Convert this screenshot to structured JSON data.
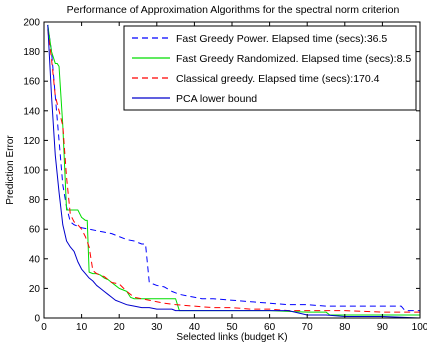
{
  "chart_data": {
    "type": "line",
    "title": "Performance of Approximation Algorithms for the spectral norm criterion",
    "xlabel": "Selected links (budget K)",
    "ylabel": "Prediction Error",
    "xlim": [
      0,
      100
    ],
    "ylim": [
      0,
      200
    ],
    "x_ticks": [
      0,
      10,
      20,
      30,
      40,
      50,
      60,
      70,
      80,
      90,
      100
    ],
    "y_ticks": [
      0,
      20,
      40,
      60,
      80,
      100,
      120,
      140,
      160,
      180,
      200
    ],
    "x_tick_labels": [
      "0",
      "10",
      "20",
      "30",
      "40",
      "50",
      "60",
      "70",
      "80",
      "90",
      "100"
    ],
    "y_tick_labels": [
      "0",
      "20",
      "40",
      "60",
      "80",
      "100",
      "120",
      "140",
      "160",
      "180",
      "200"
    ],
    "grid": false,
    "legend_position": "top-right",
    "series": [
      {
        "name": "Fast Greedy Power. Elapsed time (secs):36.5",
        "color": "#0000ff",
        "style": "dashed",
        "x": [
          1,
          2,
          3,
          4,
          5,
          6,
          7,
          8,
          10,
          12,
          14,
          16,
          18,
          20,
          22,
          24,
          26,
          27,
          28,
          30,
          32,
          34,
          36,
          38,
          40,
          42,
          45,
          50,
          55,
          60,
          65,
          70,
          75,
          80,
          85,
          90,
          95,
          96,
          97,
          100
        ],
        "y": [
          198,
          180,
          150,
          120,
          90,
          75,
          65,
          63,
          61,
          60,
          59,
          58,
          57,
          55,
          53,
          52,
          50,
          50,
          24,
          22,
          21,
          18,
          16,
          15,
          14,
          13,
          13,
          12,
          11,
          10,
          9,
          9,
          8,
          8,
          8,
          8,
          8,
          5,
          5,
          5
        ]
      },
      {
        "name": "Fast Greedy Randomized. Elapsed time (secs):8.5",
        "color": "#00dd00",
        "style": "solid",
        "x": [
          1,
          2,
          3,
          3.5,
          4,
          5,
          6,
          6.5,
          7,
          8,
          9,
          10,
          11,
          11.5,
          12,
          13,
          14,
          15,
          16,
          17,
          18,
          19,
          20,
          22,
          23,
          24,
          25,
          30,
          33,
          35,
          36,
          40,
          50,
          60,
          70,
          75,
          76,
          80,
          90,
          95,
          100
        ],
        "y": [
          198,
          180,
          172,
          172,
          170,
          130,
          73,
          73,
          73,
          73,
          73,
          68,
          66,
          66,
          31,
          30,
          30,
          29,
          27,
          26,
          24,
          22,
          20,
          18,
          14,
          13,
          13,
          13,
          13,
          13,
          5,
          5,
          5,
          5,
          4,
          4,
          2,
          2,
          2,
          2,
          2
        ]
      },
      {
        "name": "Classical greedy. Elapsed time (secs):170.4",
        "color": "#ff0000",
        "style": "dashed",
        "x": [
          1,
          2,
          3,
          4,
          5,
          6,
          7,
          8,
          9,
          10,
          11,
          12,
          13,
          14,
          15,
          16,
          18,
          20,
          22,
          24,
          26,
          28,
          30,
          32,
          35,
          40,
          45,
          50,
          55,
          60,
          65,
          70,
          75,
          80,
          90,
          95,
          100
        ],
        "y": [
          195,
          175,
          150,
          140,
          130,
          95,
          70,
          65,
          63,
          60,
          55,
          48,
          32,
          30,
          29,
          28,
          24,
          23,
          18,
          14,
          13,
          12,
          11,
          10,
          9,
          8,
          7,
          7,
          6,
          6,
          5,
          5,
          5,
          5,
          4,
          4,
          4
        ]
      },
      {
        "name": "PCA lower bound",
        "color": "#0000cc",
        "style": "solid",
        "x": [
          1,
          2,
          3,
          4,
          5,
          6,
          7,
          8,
          9,
          10,
          11,
          12,
          13,
          14,
          15,
          16,
          17,
          18,
          19,
          20,
          22,
          24,
          26,
          28,
          30,
          32,
          34,
          35,
          40,
          45,
          50,
          55,
          60,
          65,
          70,
          75,
          80,
          90,
          100
        ],
        "y": [
          198,
          150,
          110,
          85,
          63,
          52,
          48,
          45,
          38,
          33,
          30,
          27,
          25,
          22,
          20,
          18,
          16,
          14,
          12,
          11,
          9,
          8,
          7,
          7,
          6,
          6,
          6,
          5,
          5,
          5,
          5,
          5,
          5,
          5,
          2,
          2,
          1,
          1,
          0
        ]
      }
    ]
  }
}
